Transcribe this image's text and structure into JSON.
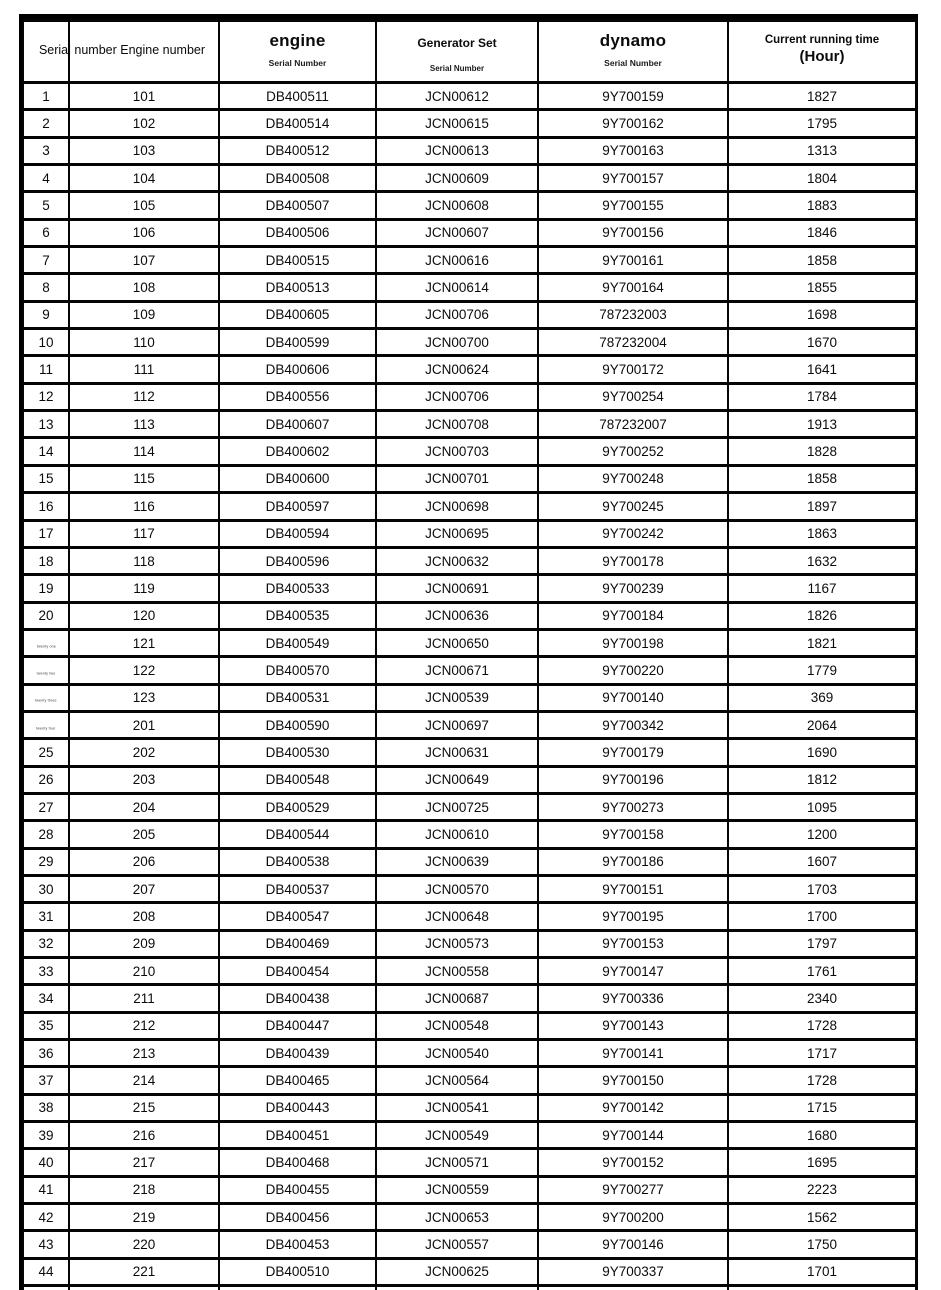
{
  "table": {
    "merged_header_label": "Serial number Engine number",
    "column_headers": [
      {
        "title": "engine",
        "subtitle": "Serial Number"
      },
      {
        "title": "Generator Set",
        "subtitle": "Serial Number"
      },
      {
        "title": "dynamo",
        "subtitle": "Serial Number"
      },
      {
        "title": "Current running time",
        "subtitle": "(Hour)"
      }
    ],
    "rows": [
      [
        "1",
        "101",
        "DB400511",
        "JCN00612",
        "9Y700159",
        "1827"
      ],
      [
        "2",
        "102",
        "DB400514",
        "JCN00615",
        "9Y700162",
        "1795"
      ],
      [
        "3",
        "103",
        "DB400512",
        "JCN00613",
        "9Y700163",
        "1313"
      ],
      [
        "4",
        "104",
        "DB400508",
        "JCN00609",
        "9Y700157",
        "1804"
      ],
      [
        "5",
        "105",
        "DB400507",
        "JCN00608",
        "9Y700155",
        "1883"
      ],
      [
        "6",
        "106",
        "DB400506",
        "JCN00607",
        "9Y700156",
        "1846"
      ],
      [
        "7",
        "107",
        "DB400515",
        "JCN00616",
        "9Y700161",
        "1858"
      ],
      [
        "8",
        "108",
        "DB400513",
        "JCN00614",
        "9Y700164",
        "1855"
      ],
      [
        "9",
        "109",
        "DB400605",
        "JCN00706",
        "787232003",
        "1698"
      ],
      [
        "10",
        "110",
        "DB400599",
        "JCN00700",
        "787232004",
        "1670"
      ],
      [
        "11",
        "111",
        "DB400606",
        "JCN00624",
        "9Y700172",
        "1641"
      ],
      [
        "12",
        "112",
        "DB400556",
        "JCN00706",
        "9Y700254",
        "1784"
      ],
      [
        "13",
        "113",
        "DB400607",
        "JCN00708",
        "787232007",
        "1913"
      ],
      [
        "14",
        "114",
        "DB400602",
        "JCN00703",
        "9Y700252",
        "1828"
      ],
      [
        "15",
        "115",
        "DB400600",
        "JCN00701",
        "9Y700248",
        "1858"
      ],
      [
        "16",
        "116",
        "DB400597",
        "JCN00698",
        "9Y700245",
        "1897"
      ],
      [
        "17",
        "117",
        "DB400594",
        "JCN00695",
        "9Y700242",
        "1863"
      ],
      [
        "18",
        "118",
        "DB400596",
        "JCN00632",
        "9Y700178",
        "1632"
      ],
      [
        "19",
        "119",
        "DB400533",
        "JCN00691",
        "9Y700239",
        "1167"
      ],
      [
        "20",
        "120",
        "DB400535",
        "JCN00636",
        "9Y700184",
        "1826"
      ],
      [
        "twenty one",
        "121",
        "DB400549",
        "JCN00650",
        "9Y700198",
        "1821"
      ],
      [
        "twenty two",
        "122",
        "DB400570",
        "JCN00671",
        "9Y700220",
        "1779"
      ],
      [
        "twenty three",
        "123",
        "DB400531",
        "JCN00539",
        "9Y700140",
        "369"
      ],
      [
        "twenty four",
        "201",
        "DB400590",
        "JCN00697",
        "9Y700342",
        "2064"
      ],
      [
        "25",
        "202",
        "DB400530",
        "JCN00631",
        "9Y700179",
        "1690"
      ],
      [
        "26",
        "203",
        "DB400548",
        "JCN00649",
        "9Y700196",
        "1812"
      ],
      [
        "27",
        "204",
        "DB400529",
        "JCN00725",
        "9Y700273",
        "1095"
      ],
      [
        "28",
        "205",
        "DB400544",
        "JCN00610",
        "9Y700158",
        "1200"
      ],
      [
        "29",
        "206",
        "DB400538",
        "JCN00639",
        "9Y700186",
        "1607"
      ],
      [
        "30",
        "207",
        "DB400537",
        "JCN00570",
        "9Y700151",
        "1703"
      ],
      [
        "31",
        "208",
        "DB400547",
        "JCN00648",
        "9Y700195",
        "1700"
      ],
      [
        "32",
        "209",
        "DB400469",
        "JCN00573",
        "9Y700153",
        "1797"
      ],
      [
        "33",
        "210",
        "DB400454",
        "JCN00558",
        "9Y700147",
        "1761"
      ],
      [
        "34",
        "211",
        "DB400438",
        "JCN00687",
        "9Y700336",
        "2340"
      ],
      [
        "35",
        "212",
        "DB400447",
        "JCN00548",
        "9Y700143",
        "1728"
      ],
      [
        "36",
        "213",
        "DB400439",
        "JCN00540",
        "9Y700141",
        "1717"
      ],
      [
        "37",
        "214",
        "DB400465",
        "JCN00564",
        "9Y700150",
        "1728"
      ],
      [
        "38",
        "215",
        "DB400443",
        "JCN00541",
        "9Y700142",
        "1715"
      ],
      [
        "39",
        "216",
        "DB400451",
        "JCN00549",
        "9Y700144",
        "1680"
      ],
      [
        "40",
        "217",
        "DB400468",
        "JCN00571",
        "9Y700152",
        "1695"
      ],
      [
        "41",
        "218",
        "DB400455",
        "JCN00559",
        "9Y700277",
        "2223"
      ],
      [
        "42",
        "219",
        "DB400456",
        "JCN00653",
        "9Y700200",
        "1562"
      ],
      [
        "43",
        "220",
        "DB400453",
        "JCN00557",
        "9Y700146",
        "1750"
      ],
      [
        "44",
        "221",
        "DB400510",
        "JCN00625",
        "9Y700337",
        "1701"
      ]
    ],
    "tiny_serial_row_indices": [
      20,
      21,
      22,
      23
    ],
    "trailing_partial_row": true,
    "colors": {
      "border": "#000000",
      "text": "#0b0b0b",
      "background": "#ffffff"
    }
  }
}
